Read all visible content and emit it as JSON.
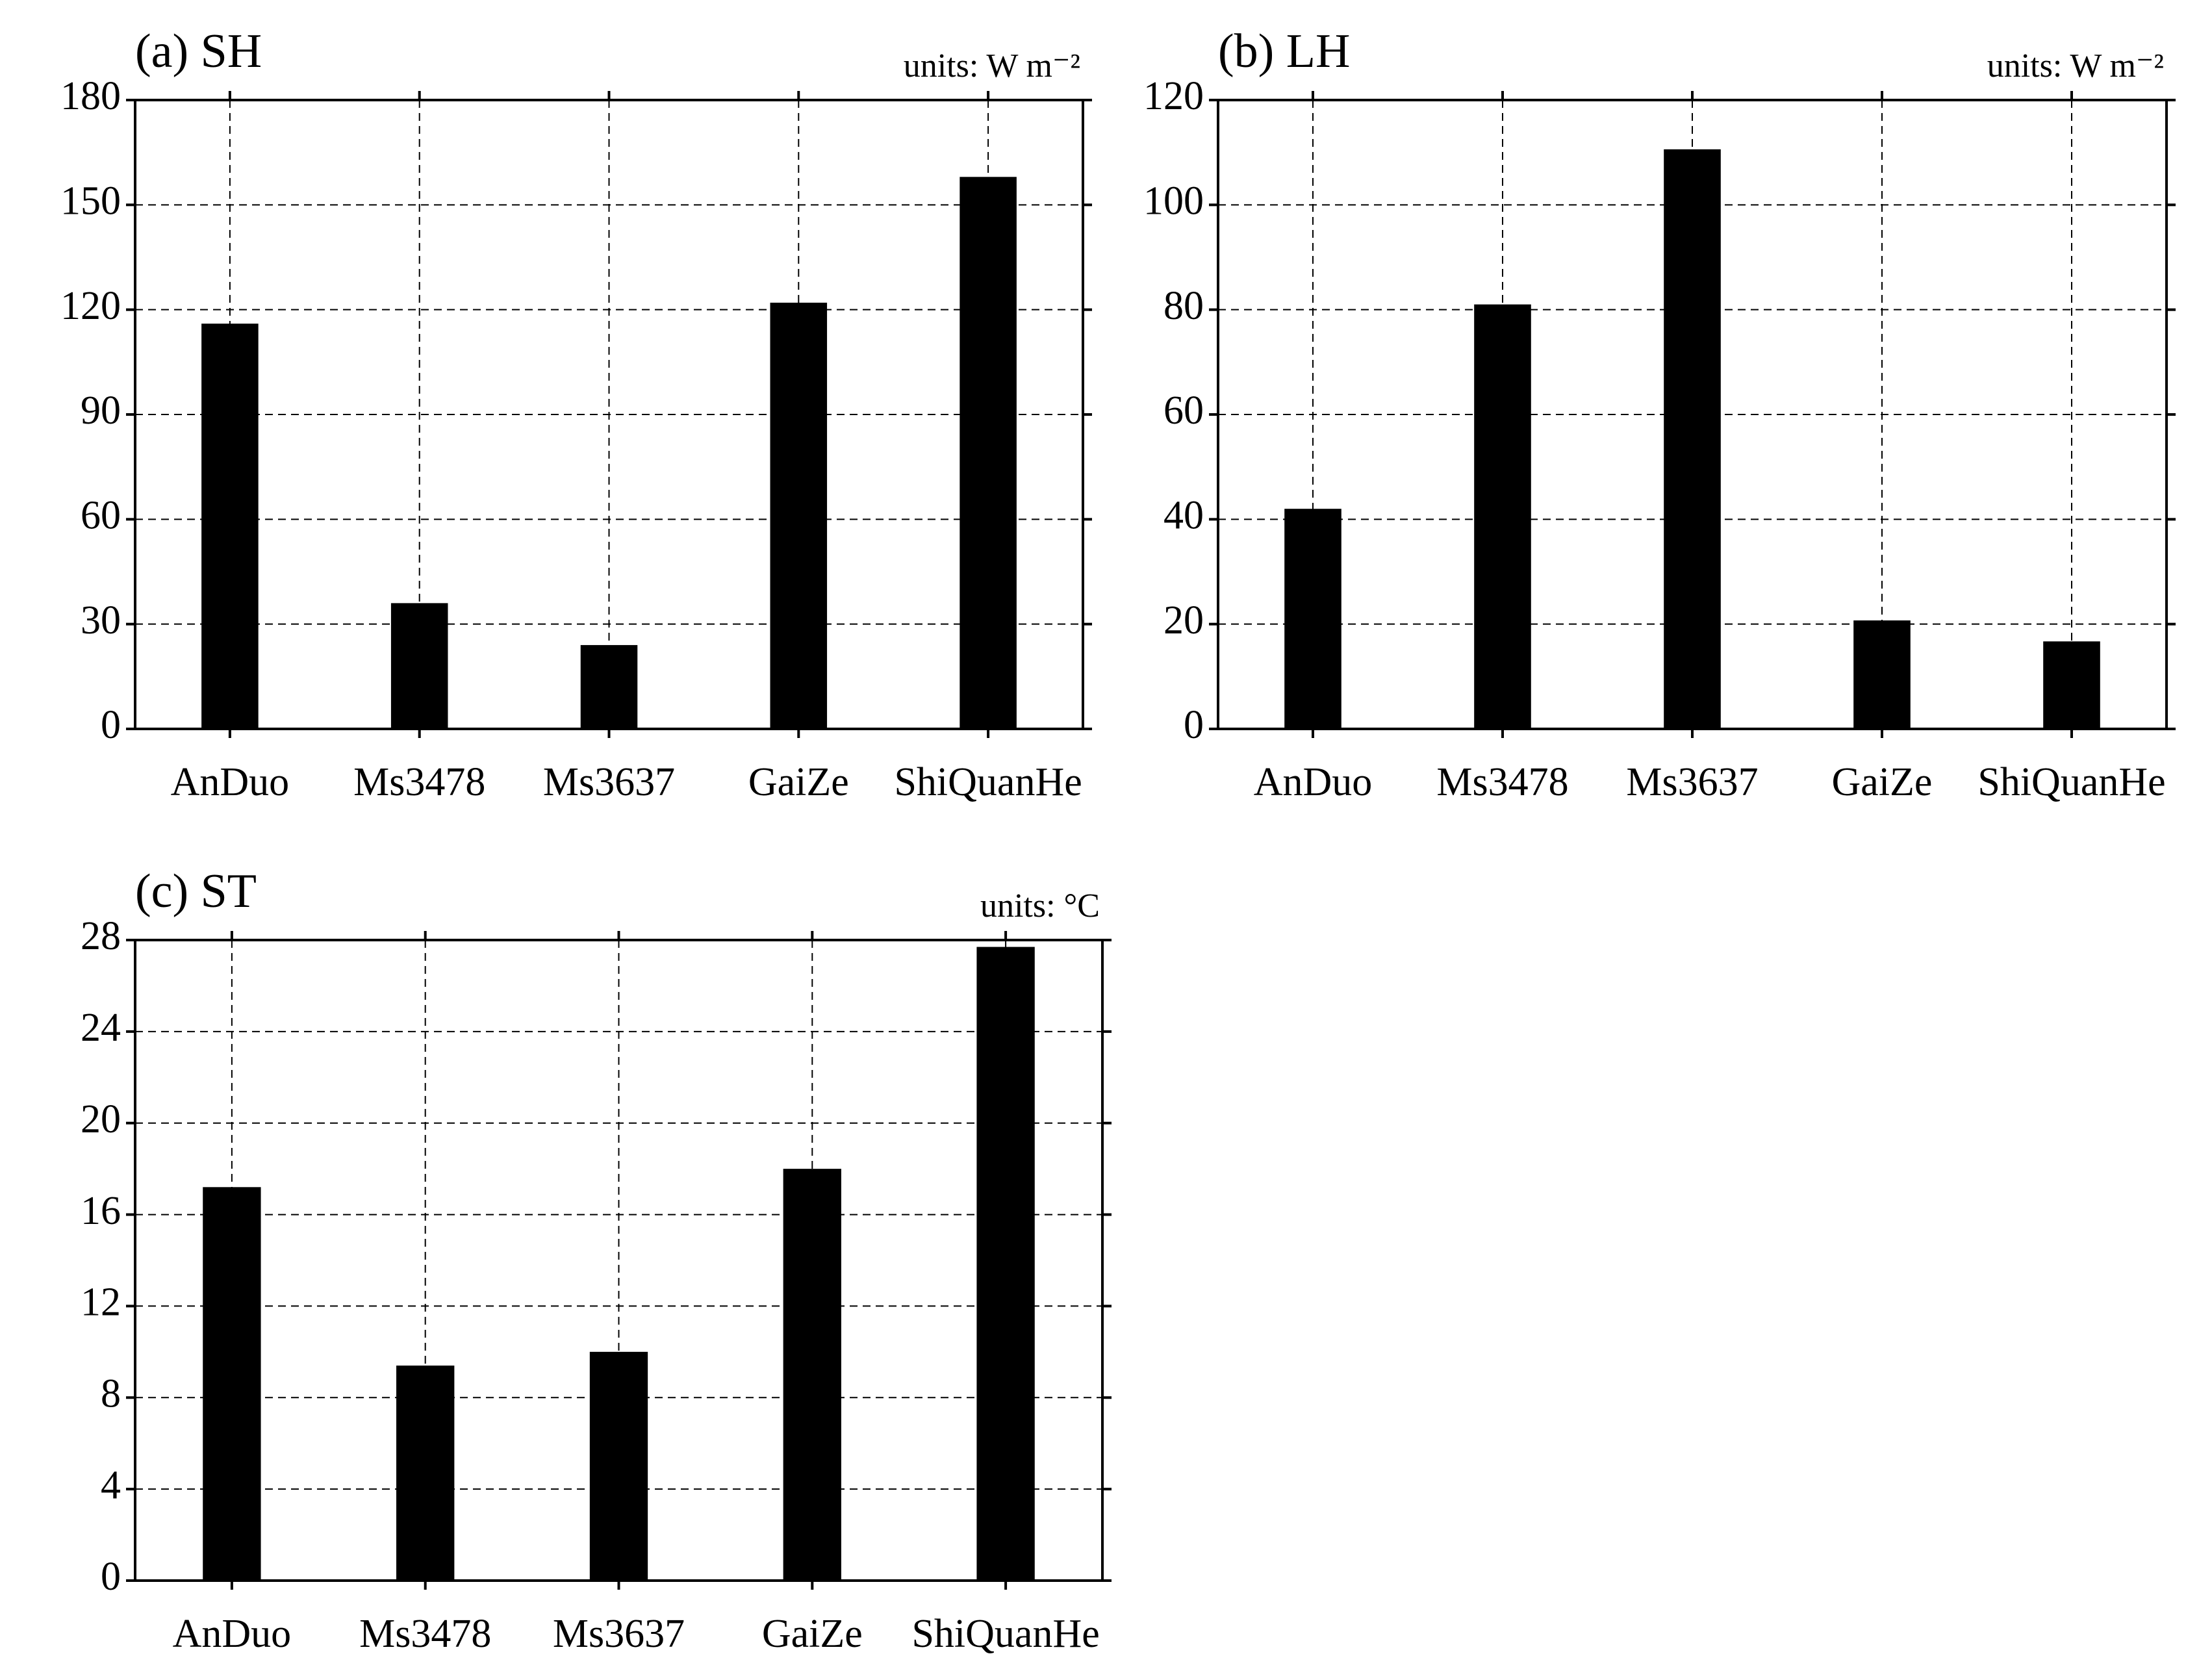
{
  "chart_data": [
    {
      "type": "bar",
      "title": "(a) SH",
      "units": "units: W m⁻²",
      "categories": [
        "AnDuo",
        "Ms3478",
        "Ms3637",
        "GaiZe",
        "ShiQuanHe"
      ],
      "values": [
        116,
        36,
        24,
        122,
        158
      ],
      "color": "#000000",
      "ylim": [
        0,
        180
      ],
      "yticks": [
        0,
        30,
        60,
        90,
        120,
        150,
        180
      ],
      "grid": true
    },
    {
      "type": "bar",
      "title": "(b) LH",
      "units": "units: W m⁻²",
      "categories": [
        "AnDuo",
        "Ms3478",
        "Ms3637",
        "GaiZe",
        "ShiQuanHe"
      ],
      "values": [
        42,
        81,
        110.6,
        20.7,
        16.7
      ],
      "color": "#000000",
      "ylim": [
        0,
        120
      ],
      "yticks": [
        0,
        20,
        40,
        60,
        80,
        100,
        120
      ],
      "grid": true
    },
    {
      "type": "bar",
      "title": "(c) ST",
      "units": "units: °C",
      "categories": [
        "AnDuo",
        "Ms3478",
        "Ms3637",
        "GaiZe",
        "ShiQuanHe"
      ],
      "values": [
        17.2,
        9.4,
        10,
        18,
        27.7
      ],
      "color": "#000000",
      "ylim": [
        0,
        28
      ],
      "yticks": [
        0,
        4,
        8,
        12,
        16,
        20,
        24,
        28
      ],
      "grid": true
    }
  ]
}
